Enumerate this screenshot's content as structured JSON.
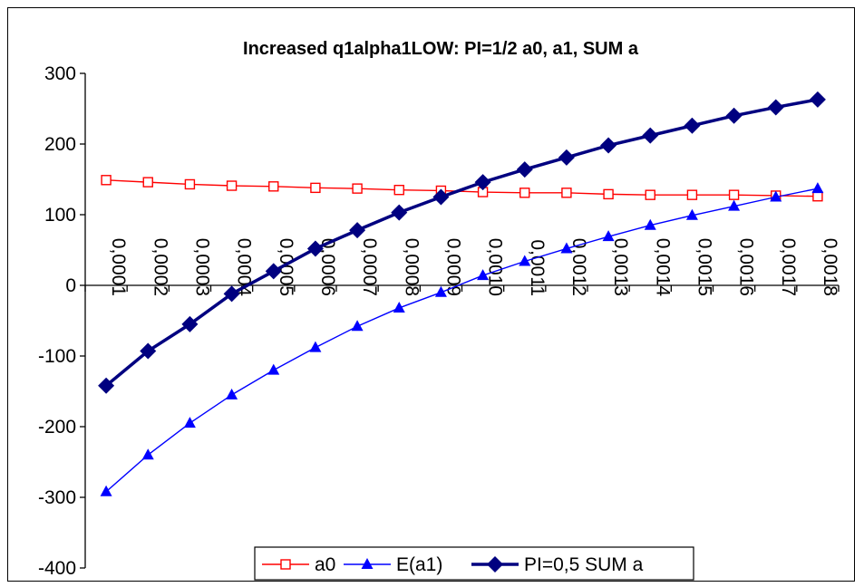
{
  "chart_data": {
    "type": "line",
    "title": "Increased q1alpha1LOW: PI=1/2 a0, a1, SUM a",
    "xlabel": "",
    "ylabel": "",
    "categories": [
      "0,0001",
      "0,0002",
      "0,0003",
      "0,0004",
      "0,0005",
      "0,0006",
      "0,0007",
      "0,0008",
      "0,0009",
      "0,0010",
      "0,0011",
      "0,0012",
      "0,0013",
      "0,0014",
      "0,0015",
      "0,0016",
      "0,0017",
      "0,0018"
    ],
    "ylim": [
      -400,
      300
    ],
    "yticks": [
      "300",
      "200",
      "100",
      "0",
      "-100",
      "-200",
      "-300",
      "-400"
    ],
    "grid": false,
    "legend_position": "bottom",
    "series": [
      {
        "name": "a0",
        "color": "#ff0000",
        "marker": "square-open",
        "values": [
          149,
          146,
          143,
          141,
          140,
          138,
          137,
          135,
          134,
          132,
          131,
          131,
          129,
          128,
          128,
          128,
          127,
          126
        ]
      },
      {
        "name": "E(a1)",
        "color": "#0000ff",
        "marker": "triangle-filled",
        "values": [
          -292,
          -240,
          -195,
          -155,
          -120,
          -88,
          -58,
          -32,
          -10,
          14,
          34,
          52,
          69,
          85,
          99,
          112,
          125,
          137
        ]
      },
      {
        "name": "PI=0,5 SUM a",
        "color": "#000080",
        "marker": "diamond-filled",
        "values": [
          -142,
          -93,
          -55,
          -12,
          20,
          52,
          78,
          103,
          125,
          146,
          164,
          181,
          198,
          212,
          226,
          240,
          252,
          263
        ]
      }
    ]
  }
}
